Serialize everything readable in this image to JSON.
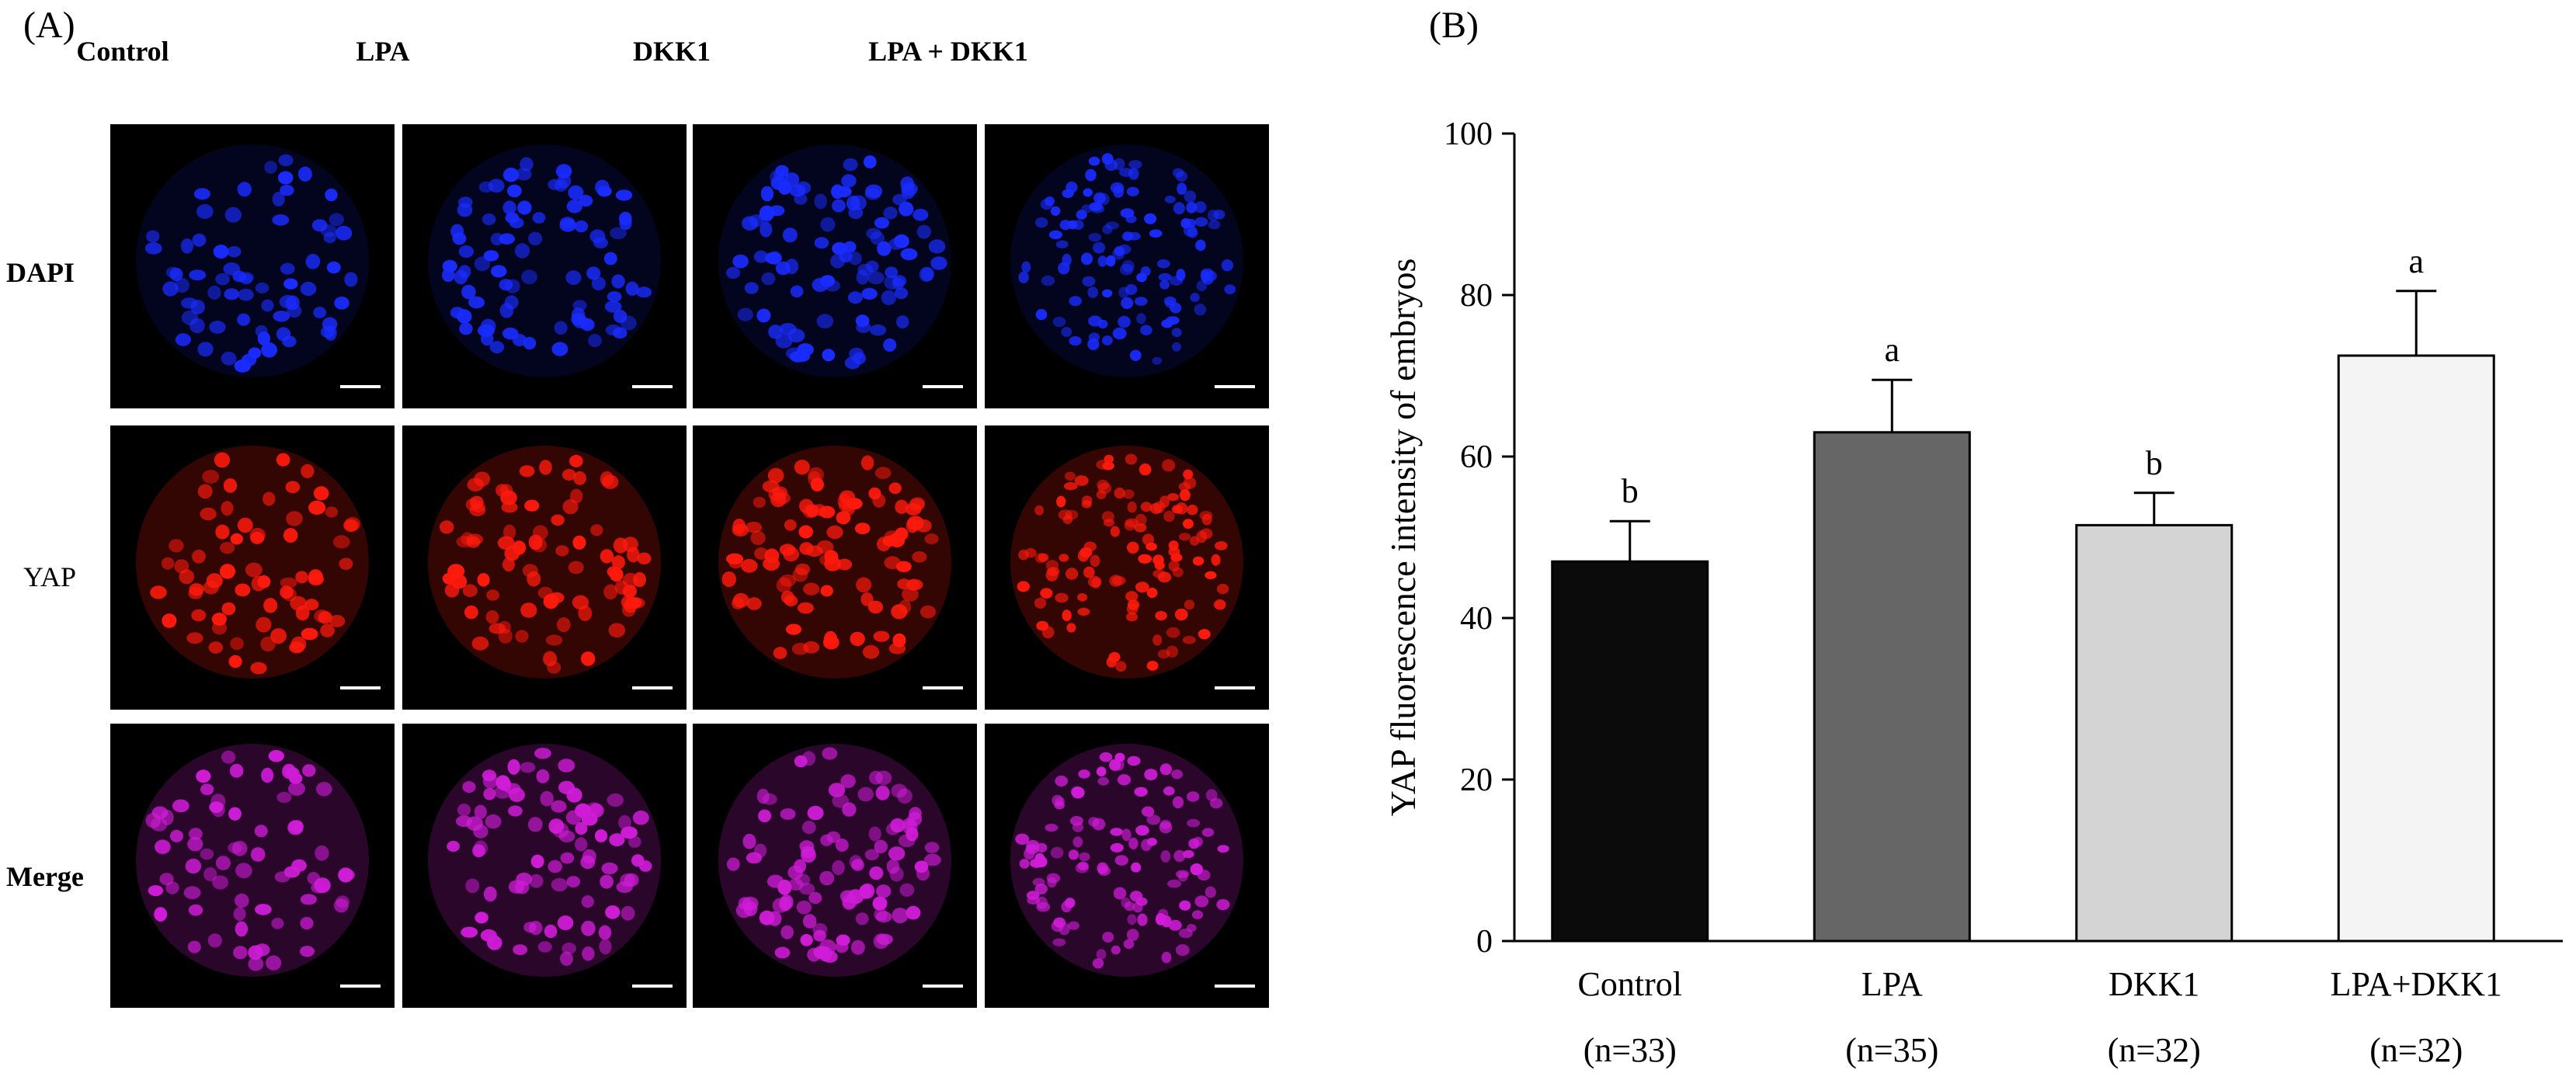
{
  "panel_a": {
    "label": "(A)",
    "columns": [
      "Control",
      "LPA",
      "DKK1",
      "LPA + DKK1"
    ],
    "rows": [
      "DAPI",
      "YAP",
      "Merge"
    ],
    "colors": {
      "DAPI": "#1a2cff",
      "YAP": "#ff1a0d",
      "Merge": "#d01cd8"
    },
    "image_description": "Confocal fluorescence micrographs of embryos with white scale bars"
  },
  "panel_b": {
    "label": "(B)"
  },
  "chart_data": {
    "type": "bar",
    "categories": [
      "Control",
      "LPA",
      "DKK1",
      "LPA+DKK1"
    ],
    "category_n": [
      "(n=33)",
      "(n=35)",
      "(n=32)",
      "(n=32)"
    ],
    "values": [
      47,
      63,
      51.5,
      72.5
    ],
    "errors": [
      5,
      6.5,
      4,
      8
    ],
    "significance": [
      "b",
      "a",
      "b",
      "a"
    ],
    "bar_colors": [
      "#0b0b0b",
      "#666666",
      "#d4d4d4",
      "#f4f4f4"
    ],
    "xlabel": "",
    "ylabel": "YAP fluorescence intensity of embryos",
    "ylim": [
      0,
      100
    ],
    "yticks": [
      0,
      20,
      40,
      60,
      80,
      100
    ],
    "grid": false
  }
}
